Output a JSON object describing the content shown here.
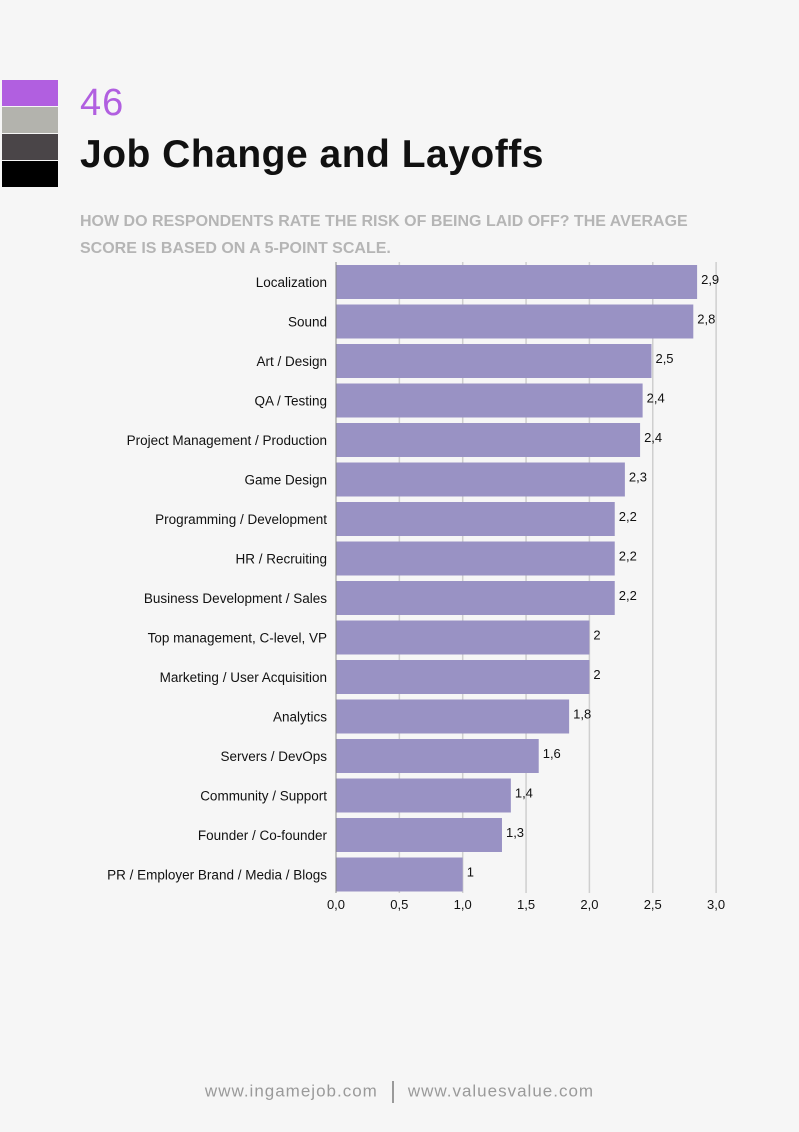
{
  "page": {
    "number": "46",
    "title": "Job Change and Layoffs",
    "subtitle": "HOW DO RESPONDENTS RATE THE RISK OF BEING LAID OFF? THE AVERAGE SCORE IS BASED ON A 5-POINT SCALE.",
    "swatch_colors": [
      "#b15fe0",
      "#b3b3ad",
      "#4a4548",
      "#000000"
    ],
    "footer_left": "www.ingamejob.com",
    "footer_right": "www.valuesvalue.com"
  },
  "colors": {
    "bar": "#9992c4",
    "accent": "#b15fe0",
    "grid": "#cfcfcf"
  },
  "chart_data": {
    "type": "bar",
    "orientation": "horizontal",
    "categories": [
      "Localization",
      "Sound",
      "Art / Design",
      "QA / Testing",
      "Project Management / Production",
      "Game Design",
      "Programming / Development",
      "HR / Recruiting",
      "Business Development / Sales",
      "Top management, C-level, VP",
      "Marketing / User Acquisition",
      "Analytics",
      "Servers / DevOps",
      "Community / Support",
      "Founder / Co-founder",
      "PR / Employer Brand / Media / Blogs"
    ],
    "values": [
      2.85,
      2.82,
      2.49,
      2.42,
      2.4,
      2.28,
      2.2,
      2.2,
      2.2,
      2.0,
      2.0,
      1.84,
      1.6,
      1.38,
      1.31,
      1.0
    ],
    "value_labels": [
      "2,9",
      "2,8",
      "2,5",
      "2,4",
      "2,4",
      "2,3",
      "2,2",
      "2,2",
      "2,2",
      "2",
      "2",
      "1,8",
      "1,6",
      "1,4",
      "1,3",
      "1"
    ],
    "xlim": [
      0,
      3.0
    ],
    "xticks": [
      0,
      0.5,
      1.0,
      1.5,
      2.0,
      2.5,
      3.0
    ],
    "xtick_labels": [
      "0,0",
      "0,5",
      "1,0",
      "1,5",
      "2,0",
      "2,5",
      "3,0"
    ],
    "grid": true
  }
}
